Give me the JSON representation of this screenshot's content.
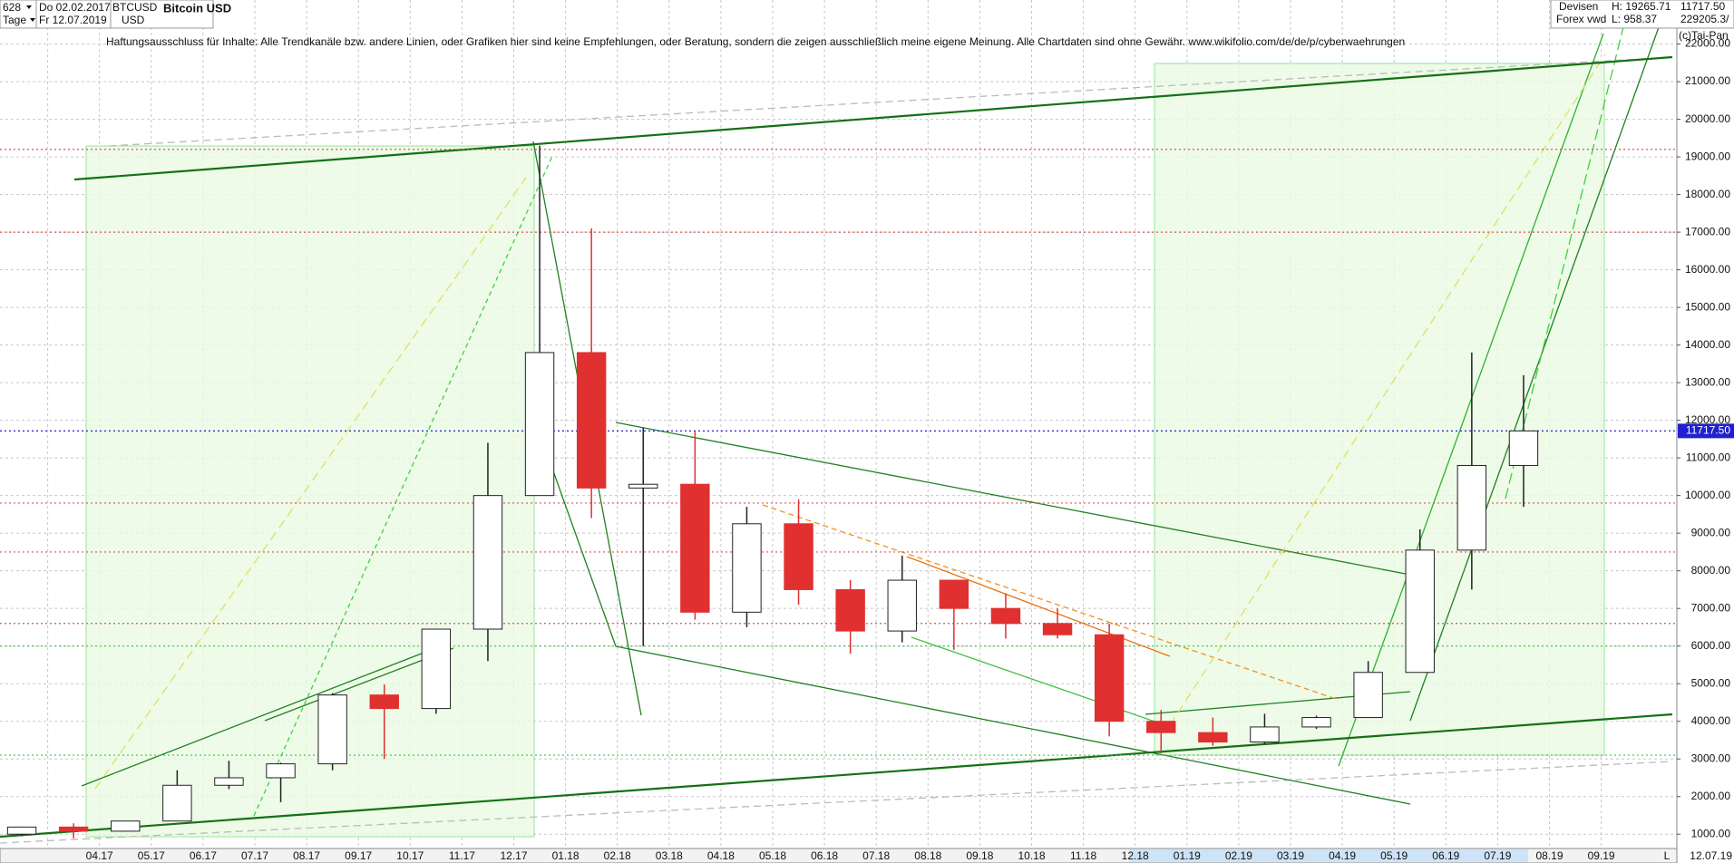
{
  "header": {
    "count": "628",
    "start_date": "Do 02.02.2017",
    "symbol": "BTCUSD",
    "period": "Tage",
    "end_date": "Fr 12.07.2019",
    "currency": "USD",
    "market": "Devisen",
    "source": "Forex vwd",
    "high": "H: 19265.71",
    "low": "L: 958.37",
    "last": "11717.50",
    "volume": "229205.3/",
    "copyright": "(c)Tai-Pan"
  },
  "disclaimer": "Haftungsausschluss für Inhalte: Alle Trendkanäle bzw. andere Linien, oder Grafiken hier sind keine Empfehlungen, oder Beratung, sondern die zeigen ausschließlich meine eigene Meinung. Alle Chartdaten sind ohne Gewähr.  www.wikifolio.com/de/de/p/cyberwaehrungen",
  "chart_data": {
    "type": "candlestick",
    "title": "Bitcoin USD",
    "categories": [
      null,
      null,
      "04.17",
      "05.17",
      "06.17",
      "07.17",
      "08.17",
      "09.17",
      "10.17",
      "11.17",
      "12.17",
      "01.18",
      "02.18",
      "03.18",
      "04.18",
      "05.18",
      "06.18",
      "07.18",
      "08.18",
      "09.18",
      "10.18",
      "11.18",
      "12.18",
      "01.19",
      "02.19",
      "03.19",
      "04.19",
      "05.19",
      "06.19",
      "07.19",
      "08.19",
      "09.19"
    ],
    "open": [
      1000,
      1190,
      1080,
      1350,
      2300,
      2500,
      2870,
      4700,
      4340,
      6450,
      10000,
      13800,
      10200,
      10300,
      6900,
      9250,
      7500,
      6400,
      7750,
      7000,
      6600,
      6300,
      4000,
      3700,
      3450,
      3850,
      4100,
      5300,
      8550,
      10800,
      null,
      null
    ],
    "high": [
      1200,
      1290,
      1350,
      2700,
      2950,
      2900,
      4750,
      4980,
      6450,
      11400,
      19300,
      17100,
      11800,
      11700,
      9700,
      9900,
      7750,
      8400,
      7750,
      7400,
      7000,
      6600,
      4300,
      4100,
      4200,
      4150,
      5600,
      9100,
      13800,
      13200,
      null,
      null
    ],
    "low": [
      950,
      890,
      1070,
      1350,
      2200,
      1850,
      2700,
      3000,
      4200,
      5600,
      10000,
      9400,
      6000,
      6700,
      6500,
      7100,
      5800,
      6100,
      5900,
      6200,
      6200,
      3600,
      3150,
      3350,
      3400,
      3800,
      4100,
      5300,
      7500,
      9700,
      null,
      null
    ],
    "close": [
      1190,
      1080,
      1350,
      2300,
      2500,
      2870,
      4700,
      4340,
      6450,
      10000,
      13800,
      10200,
      10300,
      6900,
      9250,
      7500,
      6400,
      7750,
      7000,
      6600,
      6300,
      4000,
      3700,
      3450,
      3850,
      4100,
      5300,
      8550,
      10800,
      11717.5,
      null,
      null
    ],
    "up_color": "#ffffff",
    "down_color": "#e03030",
    "wick_color": "#222222",
    "ylim": [
      620,
      23170
    ],
    "yticks": [
      {
        "value": 1000,
        "label": "1000.00"
      },
      {
        "value": 2000,
        "label": "2000.00"
      },
      {
        "value": 3000,
        "label": "3000.00"
      },
      {
        "value": 4000,
        "label": "4000.00"
      },
      {
        "value": 5000,
        "label": "5000.00"
      },
      {
        "value": 6000,
        "label": "6000.00"
      },
      {
        "value": 7000,
        "label": "7000.00"
      },
      {
        "value": 8000,
        "label": "8000.00"
      },
      {
        "value": 9000,
        "label": "9000.00"
      },
      {
        "value": 10000,
        "label": "10000.00"
      },
      {
        "value": 11000,
        "label": "11000.00"
      },
      {
        "value": 12000,
        "label": "12000.00"
      },
      {
        "value": 13000,
        "label": "13000.00"
      },
      {
        "value": 14000,
        "label": "14000.00"
      },
      {
        "value": 15000,
        "label": "15000.00"
      },
      {
        "value": 16000,
        "label": "16000.00"
      },
      {
        "value": 17000,
        "label": "17000.00"
      },
      {
        "value": 18000,
        "label": "18000.00"
      },
      {
        "value": 19000,
        "label": "19000.00"
      },
      {
        "value": 20000,
        "label": "20000.00"
      },
      {
        "value": 21000,
        "label": "21000.00"
      },
      {
        "value": 22000,
        "label": "22000.00"
      }
    ],
    "reference_lines": [
      {
        "value": 19200,
        "color": "#e05050"
      },
      {
        "value": 17000,
        "color": "#e05050"
      },
      {
        "value": 9800,
        "color": "#e05050"
      },
      {
        "value": 8500,
        "color": "#e05050"
      },
      {
        "value": 6600,
        "color": "#e05050"
      },
      {
        "value": 6000,
        "color": "#40c040"
      },
      {
        "value": 3100,
        "color": "#40c040"
      },
      {
        "value": 11717.5,
        "color": "#2020d0"
      }
    ],
    "last_price": {
      "value": 11717.5,
      "label": "11717.50",
      "color": "#2020d0"
    },
    "x_end_label": "12.07.19",
    "x_end_marker": "L",
    "grid": true
  }
}
